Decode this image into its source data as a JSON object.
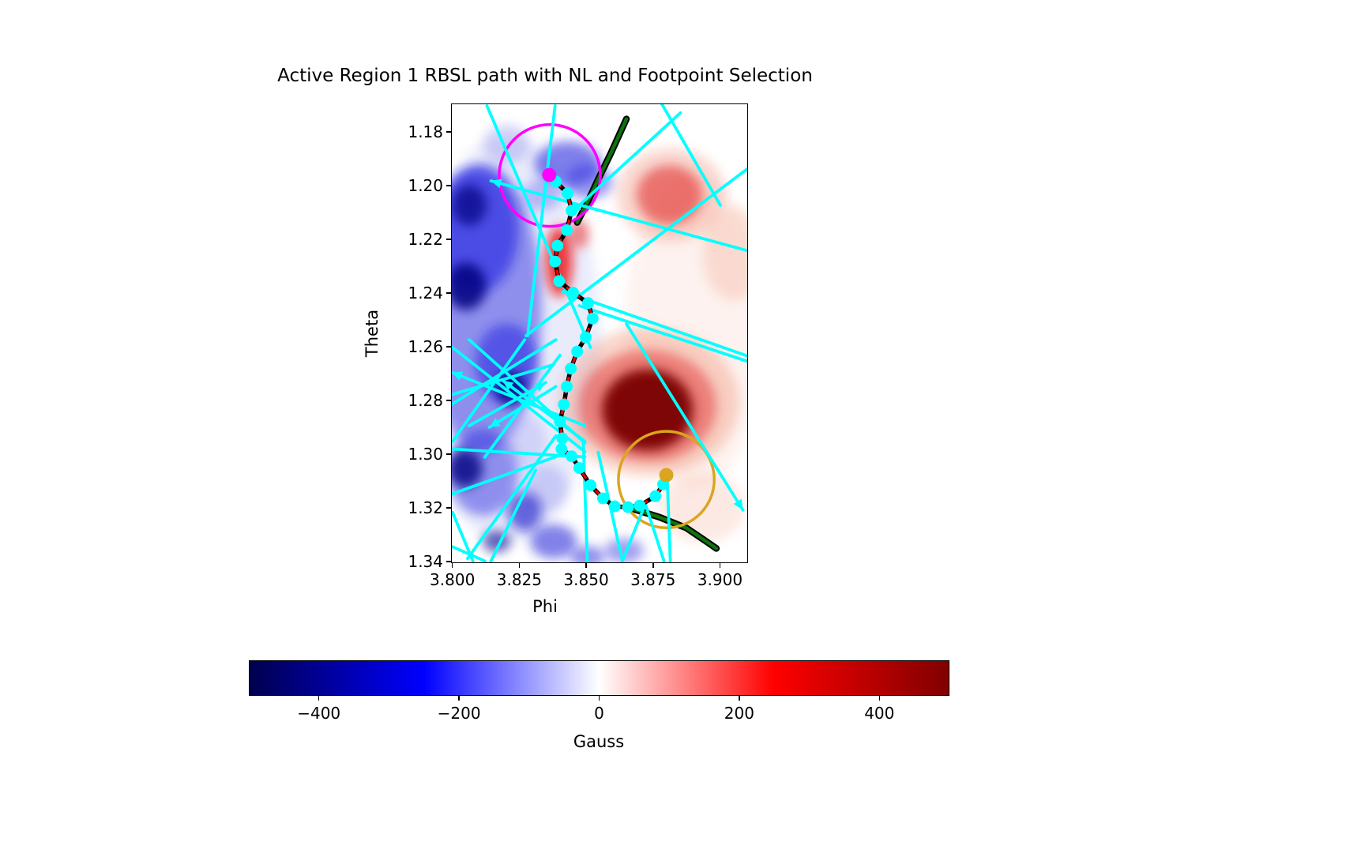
{
  "title": "Active Region 1 RBSL path with NL and Footpoint Selection",
  "axes": {
    "xlabel": "Phi",
    "ylabel": "Theta"
  },
  "colorbar": {
    "label": "Gauss",
    "range": [
      -500,
      500
    ],
    "tick_values": [
      -400,
      -200,
      0,
      200,
      400
    ],
    "tick_labels": [
      "−400",
      "−200",
      "0",
      "200",
      "400"
    ],
    "colormap": "seismic",
    "gradient_stops": [
      [
        0,
        "#00004d"
      ],
      [
        0.25,
        "#0000ff"
      ],
      [
        0.5,
        "#ffffff"
      ],
      [
        0.75,
        "#ff0000"
      ],
      [
        1,
        "#800000"
      ]
    ]
  },
  "chart_data": {
    "type": "heatmap",
    "title": "Active Region 1 RBSL path with NL and Footpoint Selection",
    "xlabel": "Phi",
    "ylabel": "Theta",
    "x_range": [
      3.7995,
      3.9105
    ],
    "y_range": [
      1.1695,
      1.3405
    ],
    "y_increases_downward": true,
    "grid": false,
    "x_ticks": {
      "values": [
        3.8,
        3.825,
        3.85,
        3.875,
        3.9
      ],
      "labels": [
        "3.800",
        "3.825",
        "3.850",
        "3.875",
        "3.900"
      ]
    },
    "y_ticks": {
      "values": [
        1.18,
        1.2,
        1.22,
        1.24,
        1.26,
        1.28,
        1.3,
        1.32,
        1.34
      ],
      "labels": [
        "1.18",
        "1.20",
        "1.22",
        "1.24",
        "1.26",
        "1.28",
        "1.30",
        "1.32",
        "1.34"
      ]
    },
    "colorbar_label": "Gauss",
    "colorbar_range": [
      -500,
      500
    ],
    "rbsl_path": {
      "line_color": "#ee0000",
      "outline_color": "#000000",
      "style": "dashed",
      "points": [
        [
          3.8361,
          1.1959
        ],
        [
          3.8386,
          1.1984
        ],
        [
          3.843,
          1.2028
        ],
        [
          3.8445,
          1.2092
        ],
        [
          3.8427,
          1.2165
        ],
        [
          3.8392,
          1.2223
        ],
        [
          3.8383,
          1.2282
        ],
        [
          3.8398,
          1.2355
        ],
        [
          3.8451,
          1.2399
        ],
        [
          3.8507,
          1.2437
        ],
        [
          3.8524,
          1.2495
        ],
        [
          3.8498,
          1.2565
        ],
        [
          3.8466,
          1.2618
        ],
        [
          3.8442,
          1.2682
        ],
        [
          3.8427,
          1.2749
        ],
        [
          3.8416,
          1.2816
        ],
        [
          3.8401,
          1.288
        ],
        [
          3.841,
          1.2942
        ],
        [
          3.8407,
          1.2982
        ],
        [
          3.8445,
          1.3009
        ],
        [
          3.8474,
          1.3053
        ],
        [
          3.8516,
          1.3117
        ],
        [
          3.8563,
          1.3166
        ],
        [
          3.8607,
          1.3196
        ],
        [
          3.8657,
          1.3199
        ],
        [
          3.8701,
          1.3193
        ],
        [
          3.876,
          1.3158
        ],
        [
          3.8789,
          1.3114
        ],
        [
          3.8801,
          1.3079
        ]
      ],
      "marker_color": "#00ffff"
    },
    "footpoints": {
      "start": {
        "color": "#ff00ff",
        "phi": 3.8361,
        "theta": 1.1959
      },
      "end": {
        "color": "#daa520",
        "phi": 3.8801,
        "theta": 1.3079
      }
    },
    "selection_circles": [
      {
        "name": "start-footpoint-circle",
        "color": "#ff00ff",
        "center": [
          3.8363,
          1.1961
        ],
        "radius": 0.019
      },
      {
        "name": "end-footpoint-circle",
        "color": "#daa520",
        "center": [
          3.8801,
          1.3096
        ],
        "radius": 0.018
      }
    ],
    "neutral_lines": {
      "color": "#0d730d",
      "outline_color": "#000000",
      "segments": [
        [
          [
            3.8651,
            1.175
          ],
          [
            3.8592,
            1.1879
          ],
          [
            3.8545,
            1.1975
          ],
          [
            3.8501,
            1.2069
          ],
          [
            3.8466,
            1.2136
          ]
        ],
        [
          [
            3.8671,
            1.3204
          ],
          [
            3.8774,
            1.3236
          ],
          [
            3.8877,
            1.3277
          ],
          [
            3.896,
            1.3333
          ],
          [
            3.8989,
            1.3353
          ]
        ]
      ]
    },
    "field_lines": {
      "color": "#00ffff",
      "segments": [
        {
          "p1": [
            3.8127,
            1.1701
          ],
          "p2": [
            3.8516,
            1.2603
          ],
          "arrow": "none"
        },
        {
          "p1": [
            3.8383,
            1.1701
          ],
          "p2": [
            3.828,
            1.2559
          ],
          "arrow": "none"
        },
        {
          "p1": [
            3.8142,
            1.1981
          ],
          "p2": [
            3.9104,
            1.2241
          ],
          "arrow": "start"
        },
        {
          "p1": [
            3.9104,
            1.1937
          ],
          "p2": [
            3.8274,
            1.2559
          ],
          "arrow": "none"
        },
        {
          "p1": [
            3.8783,
            1.1692
          ],
          "p2": [
            3.9004,
            1.2072
          ],
          "arrow": "none"
        },
        {
          "p1": [
            3.8854,
            1.1727
          ],
          "p2": [
            3.8442,
            1.2101
          ],
          "arrow": "end"
        },
        {
          "p1": [
            3.8474,
            1.2447
          ],
          "p2": [
            3.9104,
            1.2654
          ],
          "arrow": "none"
        },
        {
          "p1": [
            3.8413,
            1.2394
          ],
          "p2": [
            3.9104,
            1.2634
          ],
          "arrow": "none"
        },
        {
          "p1": [
            3.8651,
            1.2515
          ],
          "p2": [
            3.9089,
            1.321
          ],
          "arrow": "end"
        },
        {
          "p1": [
            3.7998,
            1.2603
          ],
          "p2": [
            3.8495,
            1.2992
          ],
          "arrow": "none"
        },
        {
          "p1": [
            3.806,
            1.2574
          ],
          "p2": [
            3.8495,
            1.2959
          ],
          "arrow": "none"
        },
        {
          "p1": [
            3.7998,
            1.2778
          ],
          "p2": [
            3.8377,
            1.2667
          ],
          "arrow": "none"
        },
        {
          "p1": [
            3.7998,
            1.2813
          ],
          "p2": [
            3.8386,
            1.2574
          ],
          "arrow": "none"
        },
        {
          "p1": [
            3.7998,
            1.2953
          ],
          "p2": [
            3.8269,
            1.2574
          ],
          "arrow": "none"
        },
        {
          "p1": [
            3.8119,
            1.3012
          ],
          "p2": [
            3.8401,
            1.2632
          ],
          "arrow": "none"
        },
        {
          "p1": [
            3.7998,
            1.2982
          ],
          "p2": [
            3.8495,
            1.3012
          ],
          "arrow": "none"
        },
        {
          "p1": [
            3.806,
            1.2895
          ],
          "p2": [
            3.8348,
            1.2734
          ],
          "arrow": "end"
        },
        {
          "p1": [
            3.8386,
            1.2749
          ],
          "p2": [
            3.8136,
            1.2901
          ],
          "arrow": "end"
        },
        {
          "p1": [
            3.7995,
            1.2696
          ],
          "p2": [
            3.8495,
            1.2895
          ],
          "arrow": "start"
        },
        {
          "p1": [
            3.8186,
            1.2726
          ],
          "p2": [
            3.8495,
            1.2953
          ],
          "arrow": "start"
        },
        {
          "p1": [
            3.7998,
            1.3149
          ],
          "p2": [
            3.8433,
            1.2994
          ],
          "arrow": "none"
        },
        {
          "p1": [
            3.8054,
            1.3391
          ],
          "p2": [
            3.8386,
            1.2933
          ],
          "arrow": "none"
        },
        {
          "p1": [
            3.8142,
            1.34
          ],
          "p2": [
            3.831,
            1.3061
          ],
          "arrow": "none"
        },
        {
          "p1": [
            3.7998,
            1.3219
          ],
          "p2": [
            3.8074,
            1.34
          ],
          "arrow": "none"
        },
        {
          "p1": [
            3.7998,
            1.3347
          ],
          "p2": [
            3.8119,
            1.34
          ],
          "arrow": "none"
        },
        {
          "p1": [
            3.8545,
            1.2994
          ],
          "p2": [
            3.8636,
            1.34
          ],
          "arrow": "none"
        },
        {
          "p1": [
            3.8636,
            1.34
          ],
          "p2": [
            3.8722,
            1.3187
          ],
          "arrow": "none"
        },
        {
          "p1": [
            3.8722,
            1.3187
          ],
          "p2": [
            3.8792,
            1.34
          ],
          "arrow": "none"
        },
        {
          "p1": [
            3.8804,
            1.3085
          ],
          "p2": [
            3.8816,
            1.34
          ],
          "arrow": "none"
        },
        {
          "p1": [
            3.8489,
            1.2953
          ],
          "p2": [
            3.8504,
            1.34
          ],
          "arrow": "none"
        }
      ]
    },
    "background_blobs": [
      {
        "c": [
          3.8201,
          1.2574
        ],
        "r": [
          0.0353,
          0.0759
        ],
        "color": "#aab4f0",
        "a": 0.25
      },
      {
        "c": [
          3.8907,
          1.2545
        ],
        "r": [
          0.0265,
          0.0584
        ],
        "color": "#f8c8b8",
        "a": 0.22
      },
      {
        "c": [
          3.8736,
          1.2807
        ],
        "r": [
          0.0338,
          0.0277
        ],
        "color": "#f08a6a",
        "a": 0.35
      },
      {
        "c": [
          3.8819,
          1.2034
        ],
        "r": [
          0.0206,
          0.0175
        ],
        "color": "#f0907a",
        "a": 0.35
      },
      {
        "c": [
          3.9054,
          1.2253
        ],
        "r": [
          0.0118,
          0.0175
        ],
        "color": "#f4a58a",
        "a": 0.3
      },
      {
        "c": [
          3.8936,
          1.3201
        ],
        "r": [
          0.0162,
          0.0131
        ],
        "color": "#f6b9a6",
        "a": 0.3
      },
      {
        "c": [
          3.8113,
          1.2457
        ],
        "r": [
          0.0221,
          0.054
        ],
        "color": "#2222dd",
        "a": 0.45
      },
      {
        "c": [
          3.8083,
          1.2165
        ],
        "r": [
          0.0162,
          0.0234
        ],
        "color": "#1515e0",
        "a": 0.55
      },
      {
        "c": [
          3.8113,
          1.307
        ],
        "r": [
          0.0132,
          0.0161
        ],
        "color": "#2020dd",
        "a": 0.45
      },
      {
        "c": [
          3.826,
          1.2953
        ],
        "r": [
          0.0088,
          0.0102
        ],
        "color": "#9a9af0",
        "a": 0.3
      },
      {
        "c": [
          3.8348,
          1.3128
        ],
        "r": [
          0.0082,
          0.0088
        ],
        "color": "#8888ee",
        "a": 0.35
      },
      {
        "c": [
          3.8201,
          1.1844
        ],
        "r": [
          0.0088,
          0.0073
        ],
        "color": "#8888e8",
        "a": 0.35
      },
      {
        "c": [
          3.8333,
          1.2034
        ],
        "r": [
          0.0074,
          0.0058
        ],
        "color": "#6666ee",
        "a": 0.4
      },
      {
        "c": [
          3.8201,
          1.2661
        ],
        "r": [
          0.0118,
          0.0146
        ],
        "color": "#1a1ae0",
        "a": 0.5
      },
      {
        "c": [
          3.8269,
          1.3216
        ],
        "r": [
          0.0065,
          0.0073
        ],
        "color": "#0e0ec8",
        "a": 0.6
      },
      {
        "c": [
          3.8377,
          1.3327
        ],
        "r": [
          0.0088,
          0.0064
        ],
        "color": "#1a1ad8",
        "a": 0.55
      },
      {
        "c": [
          3.8504,
          1.3385
        ],
        "r": [
          0.0065,
          0.0041
        ],
        "color": "#2222dd",
        "a": 0.5
      },
      {
        "c": [
          3.8642,
          1.3362
        ],
        "r": [
          0.0074,
          0.0047
        ],
        "color": "#3333dd",
        "a": 0.45
      },
      {
        "c": [
          3.843,
          1.1917
        ],
        "r": [
          0.0124,
          0.0082
        ],
        "color": "#2a2ae0",
        "a": 0.6
      },
      {
        "c": [
          3.851,
          1.1984
        ],
        "r": [
          0.0088,
          0.0064
        ],
        "color": "#3030e0",
        "a": 0.5
      },
      {
        "c": [
          3.873,
          1.2822
        ],
        "r": [
          0.0259,
          0.021
        ],
        "color": "#e03030",
        "a": 0.5
      },
      {
        "c": [
          3.8813,
          1.2034
        ],
        "r": [
          0.0124,
          0.0111
        ],
        "color": "#e02020",
        "a": 0.55
      },
      {
        "c": [
          3.8048,
          1.2375
        ],
        "r": [
          0.0076,
          0.0088
        ],
        "color": "#000080",
        "a": 0.85
      },
      {
        "c": [
          3.806,
          1.2072
        ],
        "r": [
          0.0065,
          0.0076
        ],
        "color": "#000080",
        "a": 0.7
      },
      {
        "c": [
          3.8216,
          1.2755
        ],
        "r": [
          0.0059,
          0.0064
        ],
        "color": "#000084",
        "a": 0.8
      },
      {
        "c": [
          3.8045,
          1.3055
        ],
        "r": [
          0.0065,
          0.007
        ],
        "color": "#000080",
        "a": 0.8
      },
      {
        "c": [
          3.8163,
          1.3327
        ],
        "r": [
          0.0053,
          0.0041
        ],
        "color": "#000090",
        "a": 0.6
      },
      {
        "c": [
          3.8398,
          1.2282
        ],
        "r": [
          0.005,
          0.0131
        ],
        "color": "#ee1111",
        "a": 0.8
      },
      {
        "c": [
          3.8474,
          1.218
        ],
        "r": [
          0.0035,
          0.0053
        ],
        "color": "#ee2222",
        "a": 0.55
      },
      {
        "c": [
          3.873,
          1.2836
        ],
        "r": [
          0.0171,
          0.0152
        ],
        "color": "#7a0000",
        "a": 0.95
      }
    ]
  }
}
